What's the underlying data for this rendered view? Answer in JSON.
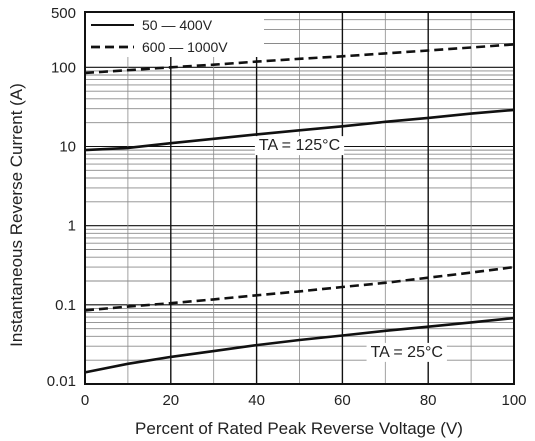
{
  "chart_data": {
    "type": "line",
    "title": "",
    "xlabel": "Percent of Rated Peak Reverse Voltage (V)",
    "ylabel": "Instantaneous Reverse Current (A)",
    "xlim": [
      0,
      100
    ],
    "ylim": [
      0.01,
      500
    ],
    "y_scale": "log",
    "x_ticks": [
      "0",
      "20",
      "40",
      "60",
      "80",
      "100"
    ],
    "y_ticks": [
      {
        "value": 0.01,
        "label": "0.01"
      },
      {
        "value": 0.1,
        "label": "0.1"
      },
      {
        "value": 1,
        "label": "1"
      },
      {
        "value": 10,
        "label": "10"
      },
      {
        "value": 100,
        "label": "100"
      },
      {
        "value": 500,
        "label": "500"
      }
    ],
    "grid": true,
    "legend": {
      "placement": "top-left",
      "entries": [
        {
          "label": "50 — 400V",
          "style": "solid"
        },
        {
          "label": "600 — 1000V",
          "style": "dashed"
        }
      ]
    },
    "annotations": [
      {
        "label": "TA = 125°C",
        "x": 50,
        "y": 9
      },
      {
        "label": "TA = 25°C",
        "x": 75,
        "y": 0.022
      }
    ],
    "series": [
      {
        "name": "50 — 400V",
        "style": "solid",
        "condition": "TA = 125°C",
        "x": [
          0,
          10,
          20,
          30,
          40,
          50,
          60,
          70,
          80,
          90,
          100
        ],
        "y": [
          9,
          9.6,
          11,
          12.5,
          14.2,
          16,
          18,
          20.5,
          23,
          26,
          29
        ]
      },
      {
        "name": "600 — 1000V",
        "style": "dashed",
        "condition": "TA = 125°C",
        "x": [
          0,
          10,
          20,
          30,
          40,
          50,
          60,
          70,
          80,
          90,
          100
        ],
        "y": [
          85,
          92,
          100,
          108,
          118,
          128,
          138,
          150,
          163,
          178,
          195
        ]
      },
      {
        "name": "600 — 1000V",
        "style": "dashed",
        "condition": "TA = 25°C",
        "x": [
          0,
          10,
          20,
          30,
          40,
          50,
          60,
          70,
          80,
          90,
          100
        ],
        "y": [
          0.085,
          0.095,
          0.105,
          0.117,
          0.132,
          0.148,
          0.168,
          0.19,
          0.22,
          0.255,
          0.3
        ]
      },
      {
        "name": "50 — 400V",
        "style": "solid",
        "condition": "TA = 25°C",
        "x": [
          0,
          10,
          20,
          30,
          40,
          50,
          60,
          70,
          80,
          90,
          100
        ],
        "y": [
          0.014,
          0.018,
          0.022,
          0.026,
          0.031,
          0.036,
          0.041,
          0.047,
          0.053,
          0.06,
          0.068
        ]
      }
    ]
  },
  "colors": {
    "curve": "#111111",
    "axis": "#111111",
    "grid_minor": "#8a8a8a",
    "grid_major": "#111111",
    "background": "#ffffff"
  }
}
